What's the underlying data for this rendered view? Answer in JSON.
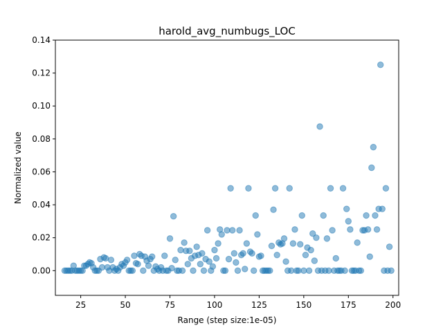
{
  "chart_data": {
    "type": "scatter",
    "title": "harold_avg_numbugs_LOC",
    "xlabel": "Range (step size:1e-05)",
    "ylabel": "Normalized value",
    "xlim": [
      10.8,
      203.2
    ],
    "ylim": [
      -0.015,
      0.14
    ],
    "xticks": [
      25,
      50,
      75,
      100,
      125,
      150,
      175,
      200
    ],
    "xtick_labels": [
      "25",
      "50",
      "75",
      "100",
      "125",
      "150",
      "175",
      "200"
    ],
    "yticks": [
      0.0,
      0.02,
      0.04,
      0.06,
      0.08,
      0.1,
      0.12,
      0.14
    ],
    "ytick_labels": [
      "0.00",
      "0.02",
      "0.04",
      "0.06",
      "0.08",
      "0.10",
      "0.12",
      "0.14"
    ],
    "grid": false,
    "marker_color": "#1f77b4",
    "marker_alpha": 0.5,
    "points": [
      [
        16,
        0
      ],
      [
        17,
        0
      ],
      [
        18,
        0
      ],
      [
        19,
        0
      ],
      [
        20,
        0
      ],
      [
        21,
        0.003
      ],
      [
        22,
        0
      ],
      [
        23,
        0
      ],
      [
        24,
        0
      ],
      [
        25,
        0
      ],
      [
        26,
        0
      ],
      [
        27,
        0.003
      ],
      [
        28,
        0.003
      ],
      [
        29,
        0.004
      ],
      [
        30,
        0.005
      ],
      [
        31,
        0.0045
      ],
      [
        32,
        0.002
      ],
      [
        33,
        0
      ],
      [
        34,
        0
      ],
      [
        35,
        0
      ],
      [
        36,
        0.007
      ],
      [
        37,
        0.002
      ],
      [
        38,
        0.008
      ],
      [
        39,
        0.0075
      ],
      [
        40,
        0.002
      ],
      [
        41,
        0
      ],
      [
        42,
        0.0065
      ],
      [
        43,
        0.002
      ],
      [
        44,
        0
      ],
      [
        45,
        0.001
      ],
      [
        46,
        0
      ],
      [
        47,
        0.002
      ],
      [
        48,
        0.004
      ],
      [
        49,
        0.003
      ],
      [
        50,
        0.005
      ],
      [
        51,
        0.0065
      ],
      [
        52,
        0
      ],
      [
        53,
        0
      ],
      [
        54,
        0
      ],
      [
        55,
        0.009
      ],
      [
        56,
        0.0045
      ],
      [
        57,
        0.004
      ],
      [
        58,
        0.01
      ],
      [
        59,
        0.009
      ],
      [
        60,
        0
      ],
      [
        61,
        0.0085
      ],
      [
        62,
        0.006
      ],
      [
        63,
        0.003
      ],
      [
        64,
        0.007
      ],
      [
        65,
        0.0085
      ],
      [
        66,
        0
      ],
      [
        67,
        0.0025
      ],
      [
        68,
        0.001
      ],
      [
        69,
        0
      ],
      [
        70,
        0.002
      ],
      [
        71,
        0
      ],
      [
        72,
        0.009
      ],
      [
        73,
        0
      ],
      [
        74,
        0
      ],
      [
        75,
        0.0195
      ],
      [
        76,
        0.0015
      ],
      [
        77,
        0.033
      ],
      [
        78,
        0.0065
      ],
      [
        79,
        0
      ],
      [
        80,
        0
      ],
      [
        81,
        0.0125
      ],
      [
        82,
        0
      ],
      [
        83,
        0.017
      ],
      [
        84,
        0.012
      ],
      [
        85,
        0.004
      ],
      [
        86,
        0.012
      ],
      [
        87,
        0.0075
      ],
      [
        88,
        0
      ],
      [
        89,
        0.009
      ],
      [
        90,
        0.0145
      ],
      [
        91,
        0.0095
      ],
      [
        92,
        0.004
      ],
      [
        93,
        0.0105
      ],
      [
        94,
        0
      ],
      [
        95,
        0.007
      ],
      [
        96,
        0.0245
      ],
      [
        97,
        0.0055
      ],
      [
        98,
        0
      ],
      [
        99,
        0.0025
      ],
      [
        100,
        0.0125
      ],
      [
        101,
        0.0075
      ],
      [
        102,
        0.0165
      ],
      [
        103,
        0.025
      ],
      [
        104,
        0.022
      ],
      [
        105,
        0
      ],
      [
        106,
        0
      ],
      [
        107,
        0.0245
      ],
      [
        108,
        0.007
      ],
      [
        109,
        0.05
      ],
      [
        110,
        0.0245
      ],
      [
        111,
        0.0105
      ],
      [
        112,
        0.005
      ],
      [
        113,
        0
      ],
      [
        114,
        0.0245
      ],
      [
        115,
        0.0095
      ],
      [
        116,
        0.0105
      ],
      [
        117,
        0.001
      ],
      [
        118,
        0.0165
      ],
      [
        119,
        0.05
      ],
      [
        120,
        0.0115
      ],
      [
        121,
        0.0105
      ],
      [
        122,
        0
      ],
      [
        123,
        0.0335
      ],
      [
        124,
        0.022
      ],
      [
        125,
        0.0085
      ],
      [
        126,
        0.009
      ],
      [
        127,
        0
      ],
      [
        128,
        0
      ],
      [
        129,
        0
      ],
      [
        130,
        0
      ],
      [
        131,
        0
      ],
      [
        132,
        0.015
      ],
      [
        133,
        0.037
      ],
      [
        134,
        0.05
      ],
      [
        135,
        0.0095
      ],
      [
        136,
        0.017
      ],
      [
        137,
        0.016
      ],
      [
        138,
        0.0165
      ],
      [
        139,
        0.0195
      ],
      [
        140,
        0.0055
      ],
      [
        141,
        0
      ],
      [
        142,
        0.05
      ],
      [
        143,
        0
      ],
      [
        144,
        0.0165
      ],
      [
        145,
        0.025
      ],
      [
        146,
        0
      ],
      [
        147,
        0
      ],
      [
        148,
        0.016
      ],
      [
        149,
        0.0335
      ],
      [
        150,
        0
      ],
      [
        151,
        0.0095
      ],
      [
        152,
        0.014
      ],
      [
        153,
        0
      ],
      [
        154,
        0.0125
      ],
      [
        155,
        0.0225
      ],
      [
        156,
        0.006
      ],
      [
        157,
        0.02
      ],
      [
        158,
        0
      ],
      [
        159,
        0.0875
      ],
      [
        160,
        0
      ],
      [
        161,
        0.0335
      ],
      [
        162,
        0
      ],
      [
        163,
        0.0195
      ],
      [
        164,
        0
      ],
      [
        165,
        0.05
      ],
      [
        166,
        0.0245
      ],
      [
        167,
        0
      ],
      [
        168,
        0.0075
      ],
      [
        169,
        0
      ],
      [
        170,
        0
      ],
      [
        171,
        0
      ],
      [
        172,
        0.05
      ],
      [
        173,
        0
      ],
      [
        174,
        0.0375
      ],
      [
        175,
        0.03
      ],
      [
        176,
        0.025
      ],
      [
        177,
        0
      ],
      [
        178,
        0
      ],
      [
        179,
        0
      ],
      [
        180,
        0.017
      ],
      [
        181,
        0
      ],
      [
        182,
        0
      ],
      [
        183,
        0.0245
      ],
      [
        184,
        0.0245
      ],
      [
        185,
        0.0335
      ],
      [
        186,
        0.025
      ],
      [
        187,
        0.0085
      ],
      [
        188,
        0.0625
      ],
      [
        189,
        0.075
      ],
      [
        190,
        0.0335
      ],
      [
        191,
        0.025
      ],
      [
        192,
        0.0375
      ],
      [
        193,
        0.125
      ],
      [
        194,
        0.0375
      ],
      [
        195,
        0
      ],
      [
        196,
        0.05
      ],
      [
        197,
        0
      ],
      [
        198,
        0.0145
      ],
      [
        199,
        0
      ]
    ]
  }
}
